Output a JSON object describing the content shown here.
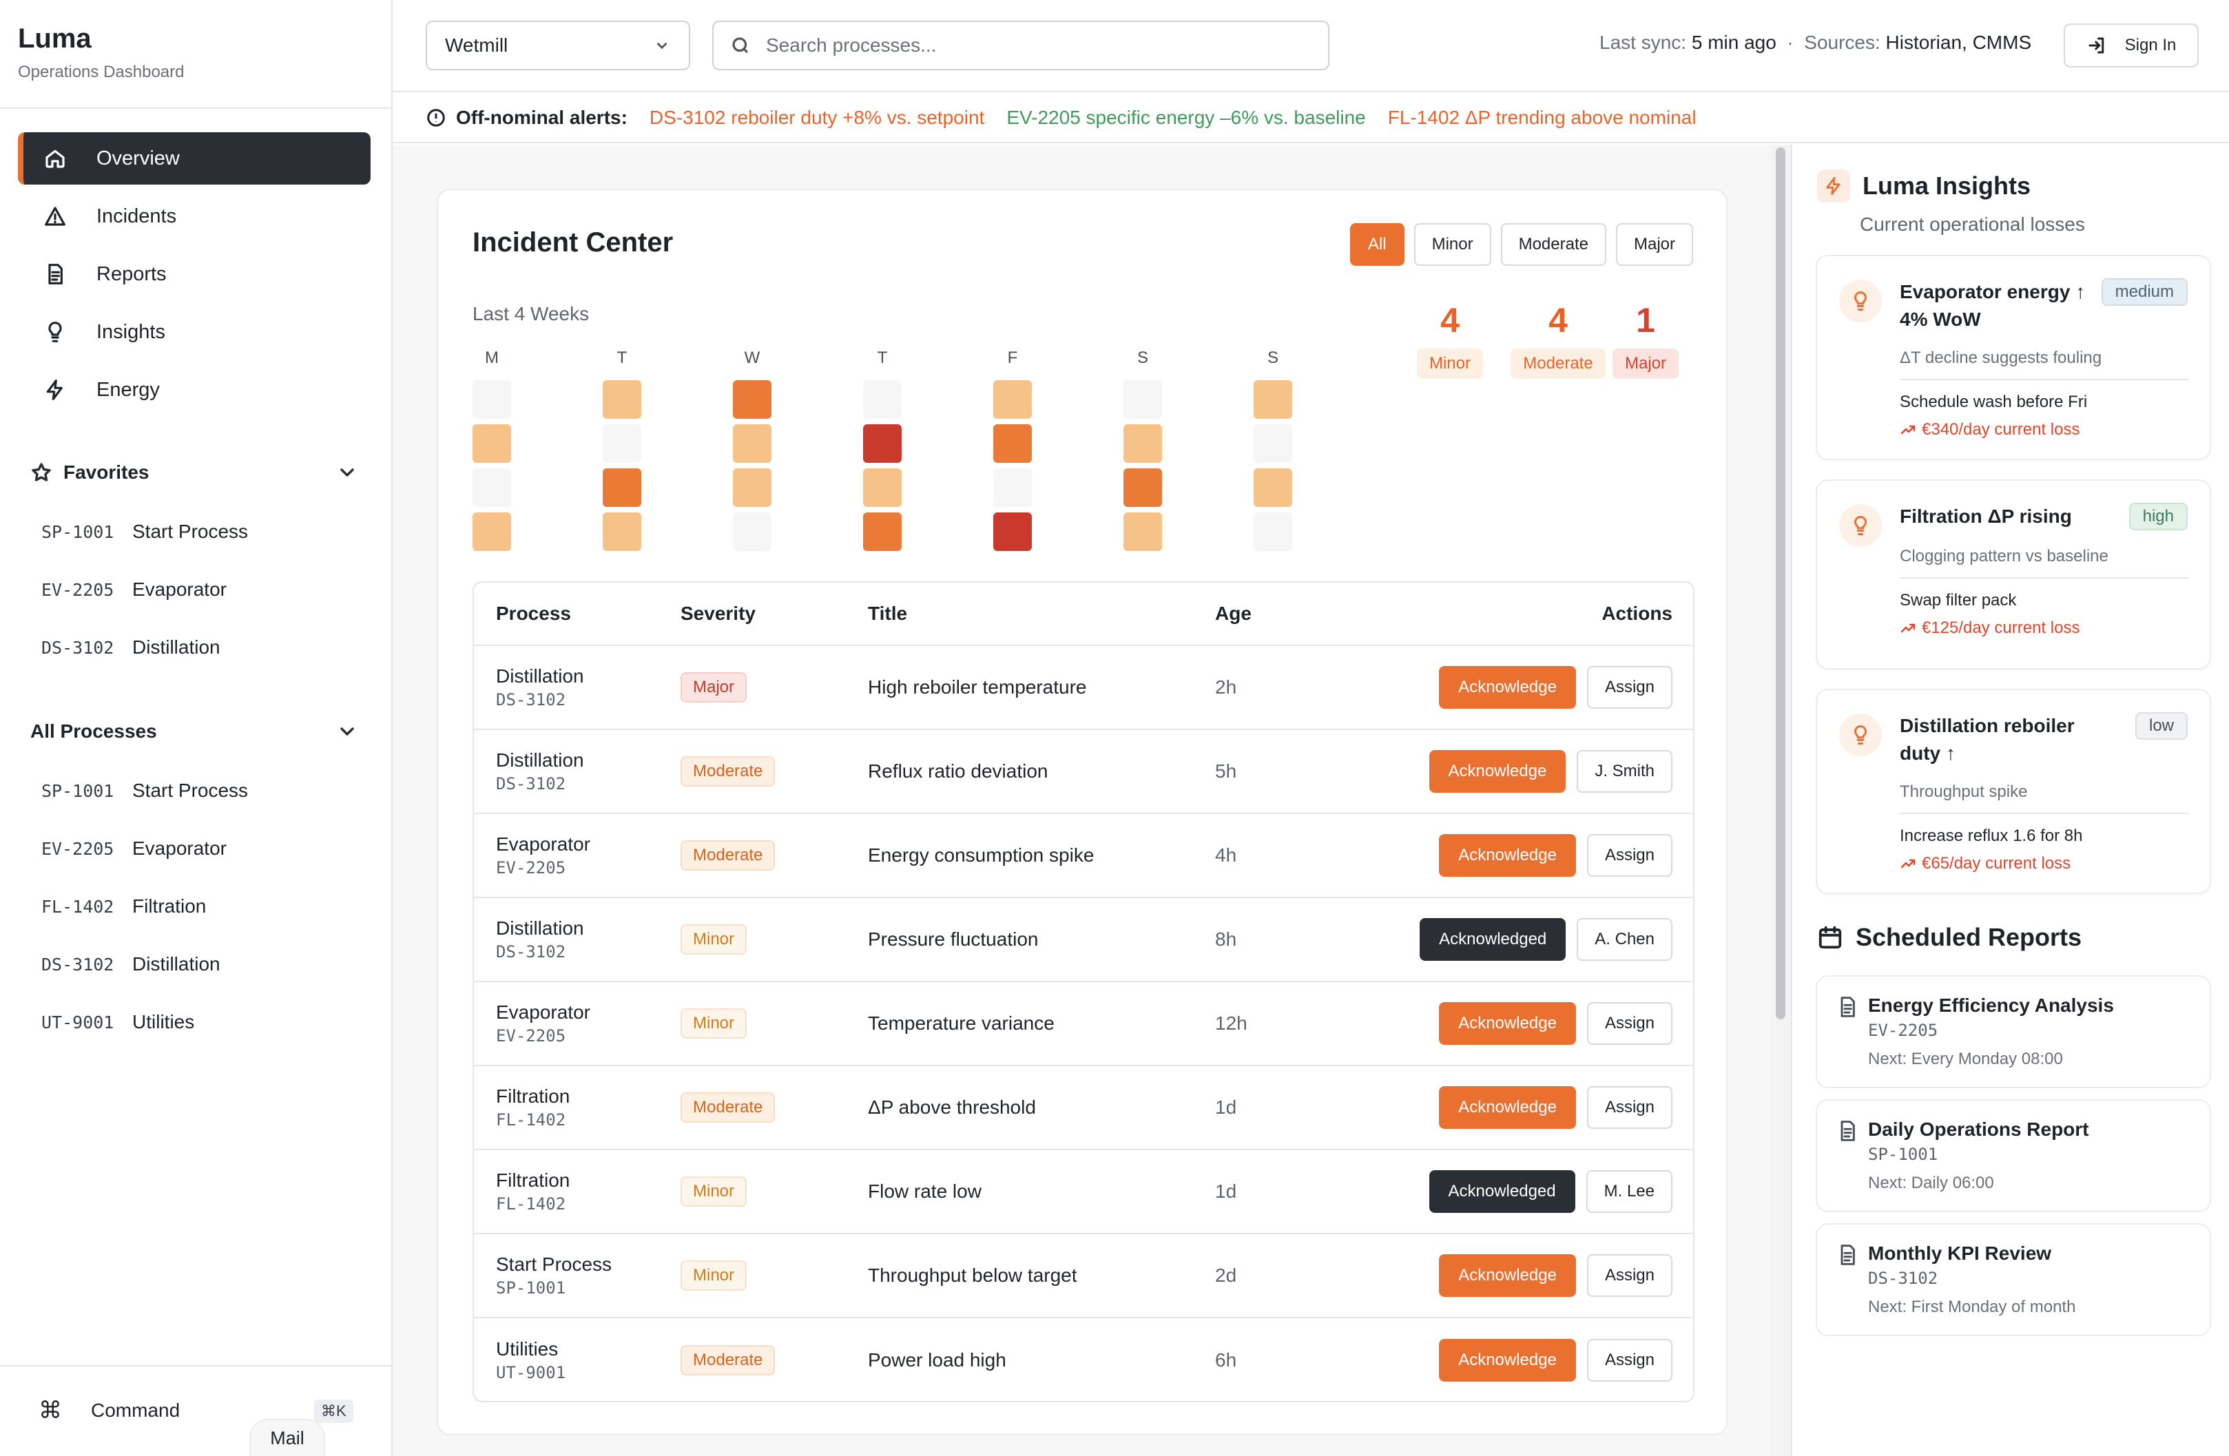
{
  "app": {
    "name": "Luma",
    "subtitle": "Operations Dashboard"
  },
  "nav": [
    {
      "label": "Overview",
      "icon": "home-icon",
      "active": true
    },
    {
      "label": "Incidents",
      "icon": "alert-triangle-icon"
    },
    {
      "label": "Reports",
      "icon": "file-text-icon"
    },
    {
      "label": "Insights",
      "icon": "lightbulb-icon"
    },
    {
      "label": "Energy",
      "icon": "lightning-icon"
    }
  ],
  "favorites": {
    "title": "Favorites",
    "items": [
      {
        "code": "SP-1001",
        "name": "Start Process"
      },
      {
        "code": "EV-2205",
        "name": "Evaporator"
      },
      {
        "code": "DS-3102",
        "name": "Distillation"
      }
    ]
  },
  "all_processes": {
    "title": "All Processes",
    "items": [
      {
        "code": "SP-1001",
        "name": "Start Process"
      },
      {
        "code": "EV-2205",
        "name": "Evaporator"
      },
      {
        "code": "FL-1402",
        "name": "Filtration"
      },
      {
        "code": "DS-3102",
        "name": "Distillation"
      },
      {
        "code": "UT-9001",
        "name": "Utilities"
      }
    ]
  },
  "command": {
    "label": "Command",
    "glyph": "⌘",
    "shortcut": "⌘K"
  },
  "mail_label": "Mail",
  "header": {
    "site_select": "Wetmill",
    "search_placeholder": "Search processes...",
    "sync_label": "Last sync:",
    "sync_value": "5 min ago",
    "sources_label": "Sources:",
    "sources_value": "Historian, CMMS",
    "signin": "Sign In"
  },
  "alerts": {
    "label": "Off-nominal alerts:",
    "items": [
      {
        "text": "DS-3102 reboiler duty +8% vs. setpoint",
        "color": "#e8632a"
      },
      {
        "text": "EV-2205 specific energy –6% vs. baseline",
        "color": "#3f9a5a"
      },
      {
        "text": "FL-1402 ΔP trending above nominal",
        "color": "#e8632a"
      }
    ]
  },
  "incident_center": {
    "title": "Incident Center",
    "filters": [
      "All",
      "Minor",
      "Moderate",
      "Major"
    ],
    "active_filter": "All",
    "period_label": "Last 4 Weeks",
    "days": [
      "M",
      "T",
      "W",
      "T",
      "F",
      "S",
      "S"
    ],
    "heatmap_levels": [
      [
        0,
        2,
        0,
        2
      ],
      [
        2,
        0,
        3,
        2
      ],
      [
        3,
        2,
        2,
        0
      ],
      [
        0,
        4,
        2,
        3
      ],
      [
        2,
        3,
        0,
        4
      ],
      [
        0,
        2,
        3,
        2
      ],
      [
        2,
        0,
        2,
        0
      ]
    ],
    "heat_colors": [
      "#f6f6f6",
      "#fbe3c7",
      "#f6c288",
      "#ea7a35",
      "#c93a2c"
    ],
    "counts": [
      {
        "value": "4",
        "label": "Minor",
        "color": "#e8632a",
        "badge_bg": "#fdf0e2"
      },
      {
        "value": "4",
        "label": "Moderate",
        "color": "#e8632a",
        "badge_bg": "#fdf0e2"
      },
      {
        "value": "1",
        "label": "Major",
        "color": "#d9402d",
        "badge_bg": "#fbe3df"
      }
    ]
  },
  "table": {
    "headers": {
      "process": "Process",
      "severity": "Severity",
      "title": "Title",
      "age": "Age",
      "actions": "Actions"
    },
    "rows": [
      {
        "process": "Distillation",
        "code": "DS-3102",
        "severity": "Major",
        "title": "High reboiler temperature",
        "age": "2h",
        "ack": "Acknowledge",
        "acked": false,
        "assign": "Assign"
      },
      {
        "process": "Distillation",
        "code": "DS-3102",
        "severity": "Moderate",
        "title": "Reflux ratio deviation",
        "age": "5h",
        "ack": "Acknowledge",
        "acked": false,
        "assign": "J. Smith"
      },
      {
        "process": "Evaporator",
        "code": "EV-2205",
        "severity": "Moderate",
        "title": "Energy consumption spike",
        "age": "4h",
        "ack": "Acknowledge",
        "acked": false,
        "assign": "Assign"
      },
      {
        "process": "Distillation",
        "code": "DS-3102",
        "severity": "Minor",
        "title": "Pressure fluctuation",
        "age": "8h",
        "ack": "Acknowledged",
        "acked": true,
        "assign": "A. Chen"
      },
      {
        "process": "Evaporator",
        "code": "EV-2205",
        "severity": "Minor",
        "title": "Temperature variance",
        "age": "12h",
        "ack": "Acknowledge",
        "acked": false,
        "assign": "Assign"
      },
      {
        "process": "Filtration",
        "code": "FL-1402",
        "severity": "Moderate",
        "title": "ΔP above threshold",
        "age": "1d",
        "ack": "Acknowledge",
        "acked": false,
        "assign": "Assign"
      },
      {
        "process": "Filtration",
        "code": "FL-1402",
        "severity": "Minor",
        "title": "Flow rate low",
        "age": "1d",
        "ack": "Acknowledged",
        "acked": true,
        "assign": "M. Lee"
      },
      {
        "process": "Start Process",
        "code": "SP-1001",
        "severity": "Minor",
        "title": "Throughput below target",
        "age": "2d",
        "ack": "Acknowledge",
        "acked": false,
        "assign": "Assign"
      },
      {
        "process": "Utilities",
        "code": "UT-9001",
        "severity": "Moderate",
        "title": "Power load high",
        "age": "6h",
        "ack": "Acknowledge",
        "acked": false,
        "assign": "Assign"
      }
    ]
  },
  "insights": {
    "title": "Luma Insights",
    "subtitle": "Current operational losses",
    "cards": [
      {
        "title": "Evaporator energy ↑ 4% WoW",
        "tag": "medium",
        "desc": "ΔT decline suggests fouling",
        "action": "Schedule wash before Fri",
        "loss": "€340/day current loss"
      },
      {
        "title": "Filtration ΔP rising",
        "tag": "high",
        "desc": "Clogging pattern vs baseline",
        "action": "Swap filter pack",
        "loss": "€125/day current loss"
      },
      {
        "title": "Distillation reboiler duty ↑",
        "tag": "low",
        "desc": "Throughput spike",
        "action": "Increase reflux 1.6 for 8h",
        "loss": "€65/day current loss"
      }
    ]
  },
  "scheduled_reports": {
    "title": "Scheduled Reports",
    "items": [
      {
        "title": "Energy Efficiency Analysis",
        "code": "EV-2205",
        "next": "Next: Every Monday 08:00"
      },
      {
        "title": "Daily Operations Report",
        "code": "SP-1001",
        "next": "Next: Daily 06:00"
      },
      {
        "title": "Monthly KPI Review",
        "code": "DS-3102",
        "next": "Next: First Monday of month"
      }
    ]
  }
}
